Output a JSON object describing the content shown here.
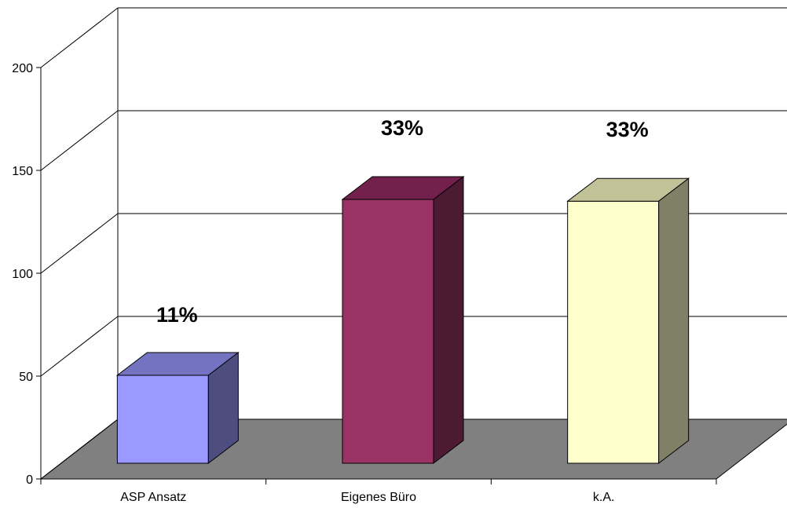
{
  "chart_data": {
    "type": "bar",
    "categories": [
      "ASP Ansatz",
      "Eigenes Büro",
      "k.A."
    ],
    "values": [
      50,
      150,
      149
    ],
    "data_labels": [
      "11%",
      "33%",
      "33%"
    ],
    "title": "",
    "xlabel": "",
    "ylabel": "",
    "ylim": [
      0,
      200
    ],
    "y_ticks": [
      "0",
      "50",
      "100",
      "150",
      "200"
    ],
    "grid": true,
    "legend": "none",
    "style": "3d-column",
    "colors": {
      "bars": [
        {
          "front": "#9999ff",
          "top": "#7373c2",
          "side": "#4d4d80"
        },
        {
          "front": "#993366",
          "top": "#73204d",
          "side": "#4d1a33"
        },
        {
          "front": "#ffffcc",
          "top": "#c2c299",
          "side": "#808066"
        }
      ],
      "floor": "#808080",
      "grid": "#000000"
    }
  }
}
